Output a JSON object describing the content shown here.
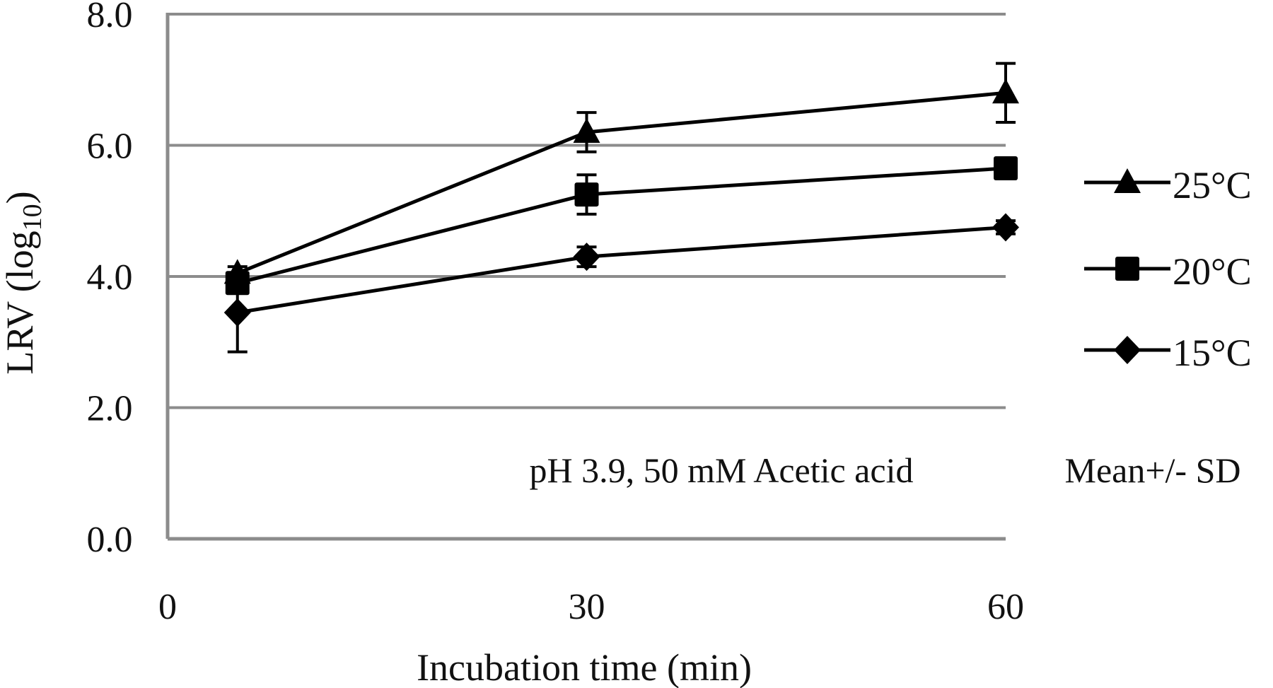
{
  "chart_data": {
    "type": "line",
    "title": "",
    "xlabel": "Incubation time (min)",
    "ylabel": "LRV (log10)",
    "ylabel_main": "LRV (log",
    "ylabel_sub": "10",
    "ylabel_close": ")",
    "xlim": [
      0,
      60
    ],
    "ylim": [
      0.0,
      8.0
    ],
    "x_ticks": [
      "0",
      "30",
      "60"
    ],
    "x_tick_values": [
      0,
      30,
      60
    ],
    "y_ticks": [
      "0.0",
      "2.0",
      "4.0",
      "6.0",
      "8.0"
    ],
    "y_tick_values": [
      0,
      2,
      4,
      6,
      8
    ],
    "grid": "horizontal",
    "legend_position": "right",
    "x": [
      5,
      30,
      60
    ],
    "series": [
      {
        "name": "25°C",
        "marker": "triangle",
        "values": [
          4.05,
          6.2,
          6.8
        ],
        "sd": [
          0.1,
          0.3,
          0.45
        ]
      },
      {
        "name": "20°C",
        "marker": "square",
        "values": [
          3.9,
          5.25,
          5.65
        ],
        "sd": [
          0.1,
          0.3,
          0.1
        ]
      },
      {
        "name": "15°C",
        "marker": "diamond",
        "values": [
          3.45,
          4.3,
          4.75
        ],
        "sd": [
          0.6,
          0.15,
          0.1
        ]
      }
    ],
    "annotations": [
      "pH 3.9, 50 mM Acetic acid",
      "Mean+/- SD"
    ]
  }
}
